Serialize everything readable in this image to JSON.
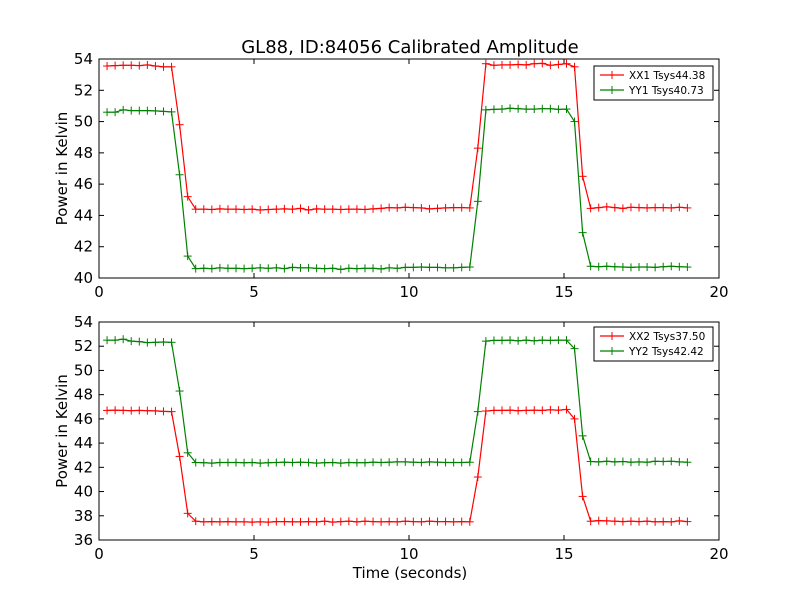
{
  "chart_data": [
    {
      "type": "line",
      "title": "GL88, ID:84056 Calibrated Amplitude",
      "xlabel": "",
      "ylabel": "Power in Kelvin",
      "xlim": [
        0,
        20
      ],
      "ylim": [
        40,
        54
      ],
      "xticks": [
        "0",
        "5",
        "10",
        "15",
        "20"
      ],
      "yticks": [
        "40",
        "42",
        "44",
        "46",
        "48",
        "50",
        "52",
        "54"
      ],
      "legend_position": "top-right",
      "grid": false,
      "x": [
        0.26,
        0.52,
        0.78,
        1.04,
        1.3,
        1.56,
        1.82,
        2.08,
        2.34,
        2.6,
        2.86,
        3.12,
        3.38,
        3.64,
        3.9,
        4.16,
        4.42,
        4.68,
        4.94,
        5.2,
        5.46,
        5.72,
        5.98,
        6.24,
        6.5,
        6.76,
        7.02,
        7.28,
        7.54,
        7.8,
        8.06,
        8.32,
        8.58,
        8.84,
        9.1,
        9.36,
        9.62,
        9.88,
        10.14,
        10.4,
        10.66,
        10.92,
        11.18,
        11.44,
        11.7,
        11.96,
        12.22,
        12.48,
        12.74,
        13.0,
        13.26,
        13.52,
        13.78,
        14.04,
        14.3,
        14.56,
        14.82,
        15.08,
        15.34,
        15.6,
        15.86,
        16.12,
        16.38,
        16.64,
        16.9,
        17.16,
        17.42,
        17.68,
        17.94,
        18.2,
        18.46,
        18.72,
        18.98
      ],
      "series": [
        {
          "name": "XX1 Tsys44.38",
          "color": "#ff0000",
          "values": [
            53.55,
            53.58,
            53.6,
            53.6,
            53.58,
            53.62,
            53.55,
            53.5,
            53.5,
            49.8,
            45.2,
            44.4,
            44.4,
            44.38,
            44.42,
            44.4,
            44.4,
            44.38,
            44.4,
            44.35,
            44.38,
            44.4,
            44.42,
            44.4,
            44.45,
            44.35,
            44.42,
            44.4,
            44.4,
            44.38,
            44.4,
            44.4,
            44.38,
            44.42,
            44.45,
            44.5,
            44.48,
            44.52,
            44.5,
            44.48,
            44.42,
            44.45,
            44.48,
            44.5,
            44.5,
            44.48,
            48.3,
            53.7,
            53.6,
            53.62,
            53.62,
            53.65,
            53.62,
            53.7,
            53.72,
            53.6,
            53.65,
            53.7,
            53.5,
            46.5,
            44.45,
            44.5,
            44.55,
            44.5,
            44.45,
            44.52,
            44.5,
            44.48,
            44.5,
            44.5,
            44.48,
            44.52,
            44.48
          ],
          "x_override_note": ""
        },
        {
          "name": "YY1 Tsys40.73",
          "color": "#008000",
          "values": [
            50.6,
            50.6,
            50.75,
            50.7,
            50.7,
            50.7,
            50.68,
            50.65,
            50.62,
            46.6,
            41.4,
            40.6,
            40.62,
            40.6,
            40.65,
            40.62,
            40.62,
            40.6,
            40.62,
            40.65,
            40.62,
            40.65,
            40.6,
            40.68,
            40.65,
            40.65,
            40.62,
            40.6,
            40.62,
            40.55,
            40.62,
            40.6,
            40.62,
            40.62,
            40.58,
            40.65,
            40.62,
            40.68,
            40.68,
            40.7,
            40.68,
            40.68,
            40.65,
            40.65,
            40.68,
            40.7,
            44.9,
            50.75,
            50.78,
            50.8,
            50.85,
            50.82,
            50.8,
            50.8,
            50.82,
            50.82,
            50.78,
            50.8,
            50.0,
            42.9,
            40.75,
            40.72,
            40.75,
            40.72,
            40.7,
            40.68,
            40.7,
            40.7,
            40.68,
            40.72,
            40.75,
            40.72,
            40.7
          ]
        }
      ]
    },
    {
      "type": "line",
      "title": "",
      "xlabel": "Time (seconds)",
      "ylabel": "Power in Kelvin",
      "xlim": [
        0,
        20
      ],
      "ylim": [
        36,
        54
      ],
      "xticks": [
        "0",
        "5",
        "10",
        "15",
        "20"
      ],
      "yticks": [
        "36",
        "38",
        "40",
        "42",
        "44",
        "46",
        "48",
        "50",
        "52",
        "54"
      ],
      "legend_position": "top-right",
      "grid": false,
      "x": [
        0.26,
        0.52,
        0.78,
        1.04,
        1.3,
        1.56,
        1.82,
        2.08,
        2.34,
        2.6,
        2.86,
        3.12,
        3.38,
        3.64,
        3.9,
        4.16,
        4.42,
        4.68,
        4.94,
        5.2,
        5.46,
        5.72,
        5.98,
        6.24,
        6.5,
        6.76,
        7.02,
        7.28,
        7.54,
        7.8,
        8.06,
        8.32,
        8.58,
        8.84,
        9.1,
        9.36,
        9.62,
        9.88,
        10.14,
        10.4,
        10.66,
        10.92,
        11.18,
        11.44,
        11.7,
        11.96,
        12.22,
        12.48,
        12.74,
        13.0,
        13.26,
        13.52,
        13.78,
        14.04,
        14.3,
        14.56,
        14.82,
        15.08,
        15.34,
        15.6,
        15.86,
        16.12,
        16.38,
        16.64,
        16.9,
        17.16,
        17.42,
        17.68,
        17.94,
        18.2,
        18.46,
        18.72,
        18.98
      ],
      "series": [
        {
          "name": "XX2 Tsys37.50",
          "color": "#ff0000",
          "values": [
            46.7,
            46.72,
            46.7,
            46.68,
            46.7,
            46.68,
            46.66,
            46.62,
            46.6,
            42.9,
            38.2,
            37.55,
            37.5,
            37.52,
            37.5,
            37.52,
            37.5,
            37.5,
            37.48,
            37.5,
            37.48,
            37.52,
            37.52,
            37.5,
            37.5,
            37.52,
            37.5,
            37.55,
            37.48,
            37.52,
            37.55,
            37.5,
            37.55,
            37.52,
            37.5,
            37.52,
            37.5,
            37.55,
            37.52,
            37.5,
            37.55,
            37.52,
            37.52,
            37.5,
            37.52,
            37.5,
            41.2,
            46.65,
            46.7,
            46.7,
            46.72,
            46.68,
            46.7,
            46.72,
            46.7,
            46.75,
            46.72,
            46.78,
            46.0,
            39.6,
            37.55,
            37.6,
            37.58,
            37.55,
            37.52,
            37.55,
            37.52,
            37.55,
            37.5,
            37.52,
            37.5,
            37.58,
            37.52
          ]
        },
        {
          "name": "YY2 Tsys42.42",
          "color": "#008000",
          "values": [
            52.5,
            52.5,
            52.58,
            52.42,
            52.38,
            52.3,
            52.32,
            52.35,
            52.32,
            48.3,
            43.2,
            42.4,
            42.38,
            42.35,
            42.4,
            42.4,
            42.4,
            42.38,
            42.4,
            42.35,
            42.38,
            42.4,
            42.42,
            42.4,
            42.42,
            42.4,
            42.35,
            42.38,
            42.4,
            42.35,
            42.4,
            42.38,
            42.38,
            42.42,
            42.4,
            42.42,
            42.45,
            42.45,
            42.42,
            42.4,
            42.45,
            42.42,
            42.4,
            42.4,
            42.4,
            42.42,
            46.6,
            52.42,
            52.48,
            52.48,
            52.5,
            52.45,
            52.5,
            52.45,
            52.5,
            52.48,
            52.5,
            52.5,
            51.8,
            44.6,
            42.48,
            42.45,
            42.5,
            42.45,
            42.48,
            42.42,
            42.45,
            42.42,
            42.5,
            42.48,
            42.5,
            42.45,
            42.42
          ]
        }
      ]
    }
  ]
}
